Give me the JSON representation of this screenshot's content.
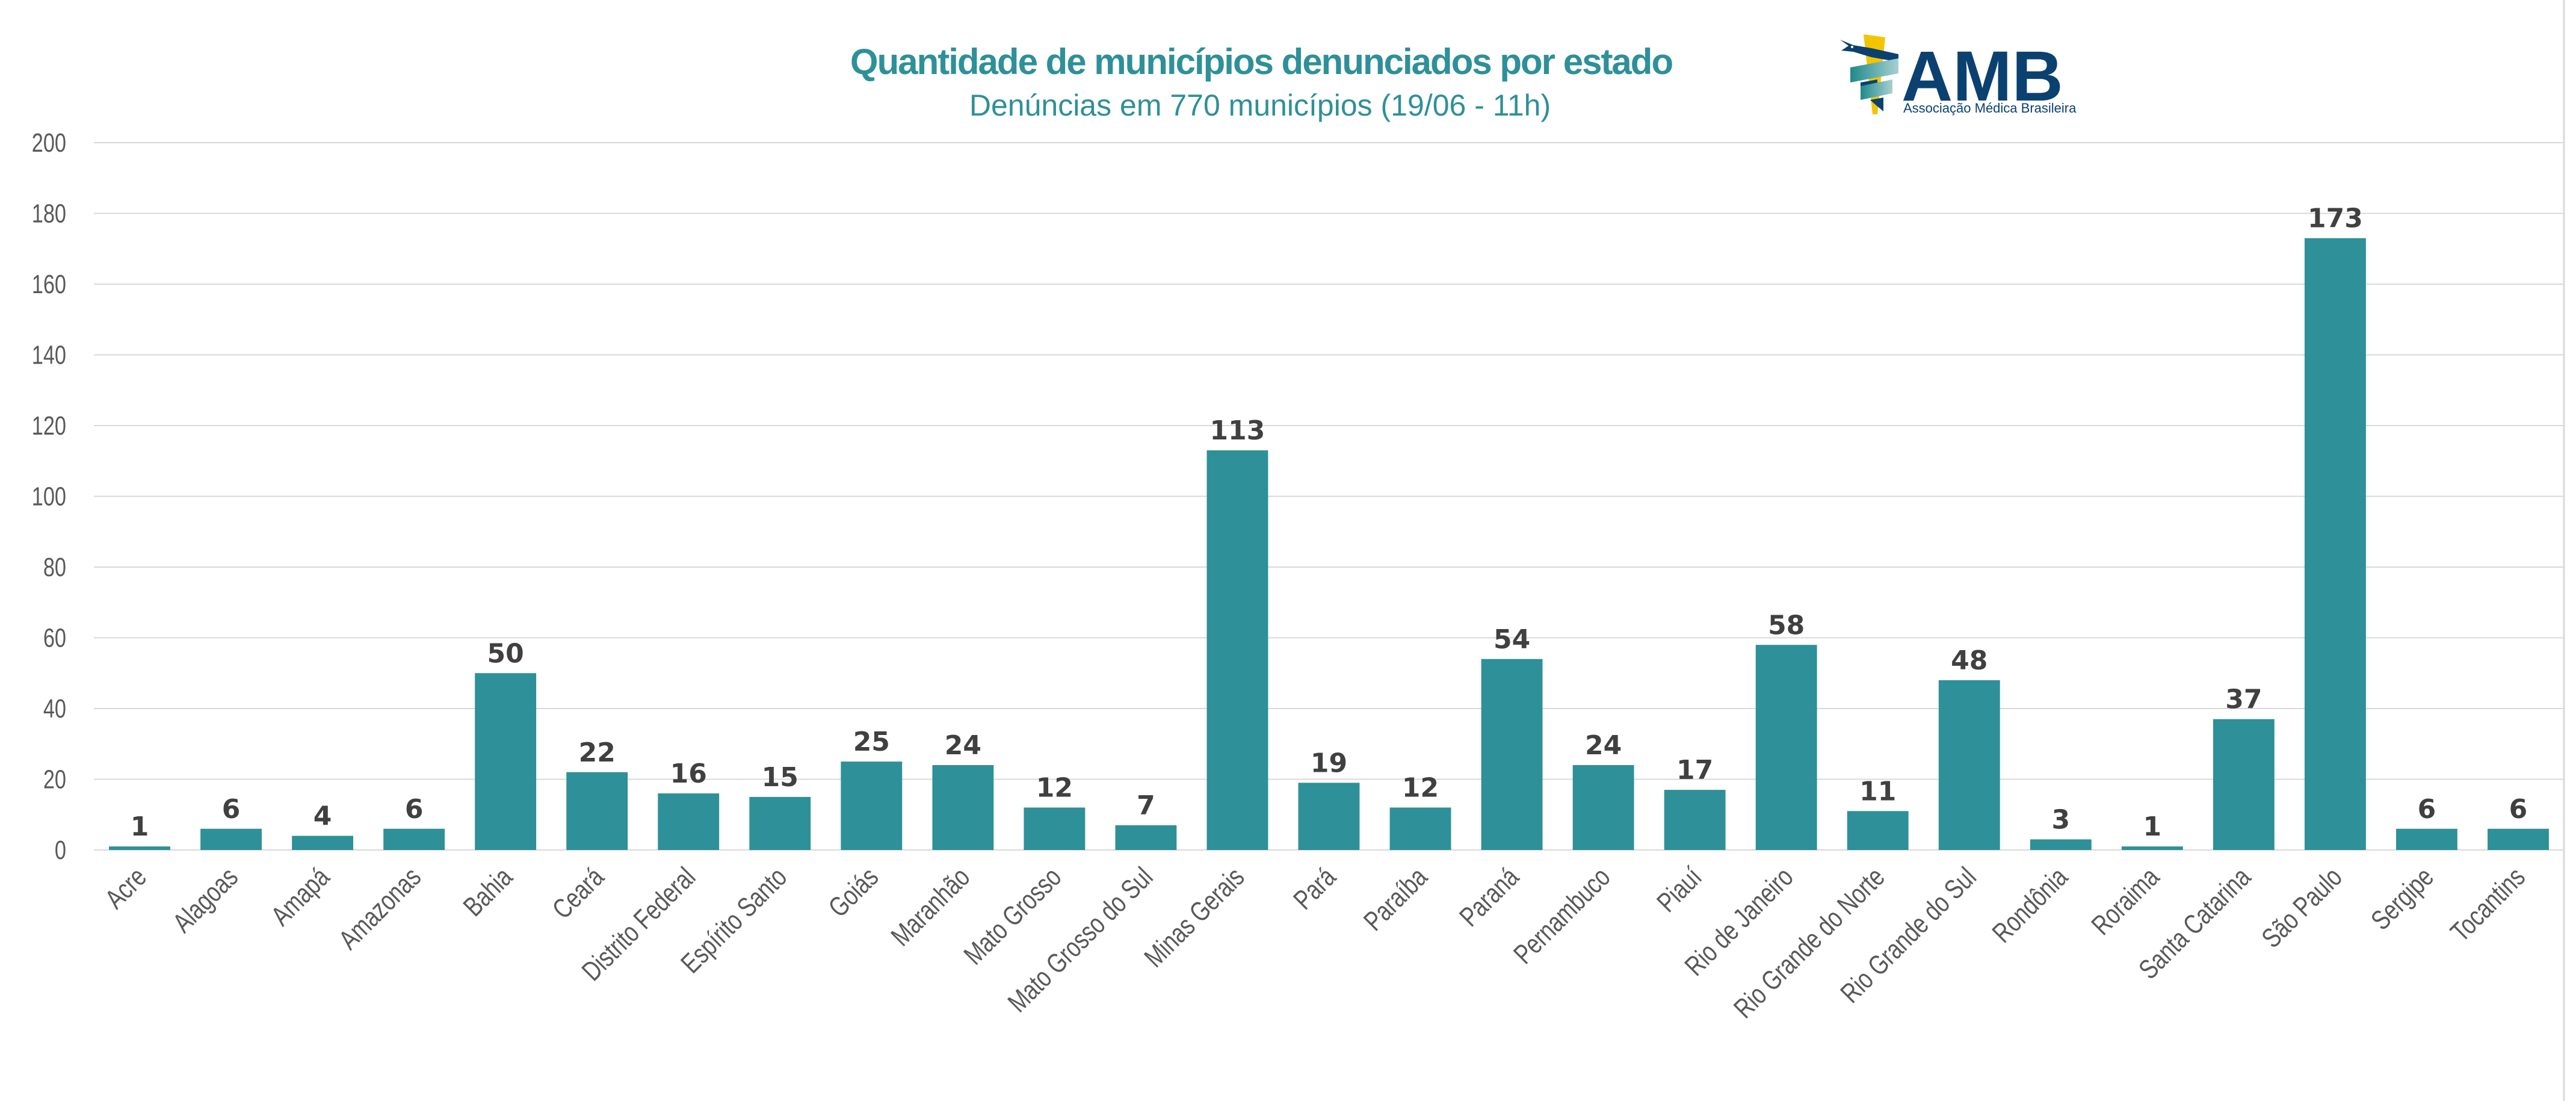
{
  "logo": {
    "name": "AMB",
    "tagline": "Associação Médica Brasileira",
    "colors": {
      "navy": "#0b4170",
      "yellow": "#f2c500",
      "teal": "#1f8a8a",
      "teal_light": "#9ccbcc"
    }
  },
  "chart_data": {
    "type": "bar",
    "title": "Quantidade de municípios denunciados por estado",
    "subtitle": "Denúncias em 770 municípios (19/06 - 11h)",
    "xlabel": "",
    "ylabel": "",
    "ylim": [
      0,
      200
    ],
    "yticks": [
      0,
      20,
      40,
      60,
      80,
      100,
      120,
      140,
      160,
      180,
      200
    ],
    "grid": true,
    "legend": "none",
    "bar_color": "#2e9098",
    "label_color": "#404040",
    "categories": [
      "Acre",
      "Alagoas",
      "Amapá",
      "Amazonas",
      "Bahia",
      "Ceará",
      "Distrito Federal",
      "Espírito Santo",
      "Goiás",
      "Maranhão",
      "Mato Grosso",
      "Mato Grosso do Sul",
      "Minas Gerais",
      "Pará",
      "Paraíba",
      "Paraná",
      "Pernambuco",
      "Piauí",
      "Rio de Janeiro",
      "Rio Grande do Norte",
      "Rio Grande do Sul",
      "Rondônia",
      "Roraima",
      "Santa Catarina",
      "São Paulo",
      "Sergipe",
      "Tocantins"
    ],
    "values": [
      1,
      6,
      4,
      6,
      50,
      22,
      16,
      15,
      25,
      24,
      12,
      7,
      113,
      19,
      12,
      54,
      24,
      17,
      58,
      11,
      48,
      3,
      1,
      37,
      173,
      6,
      6
    ]
  }
}
